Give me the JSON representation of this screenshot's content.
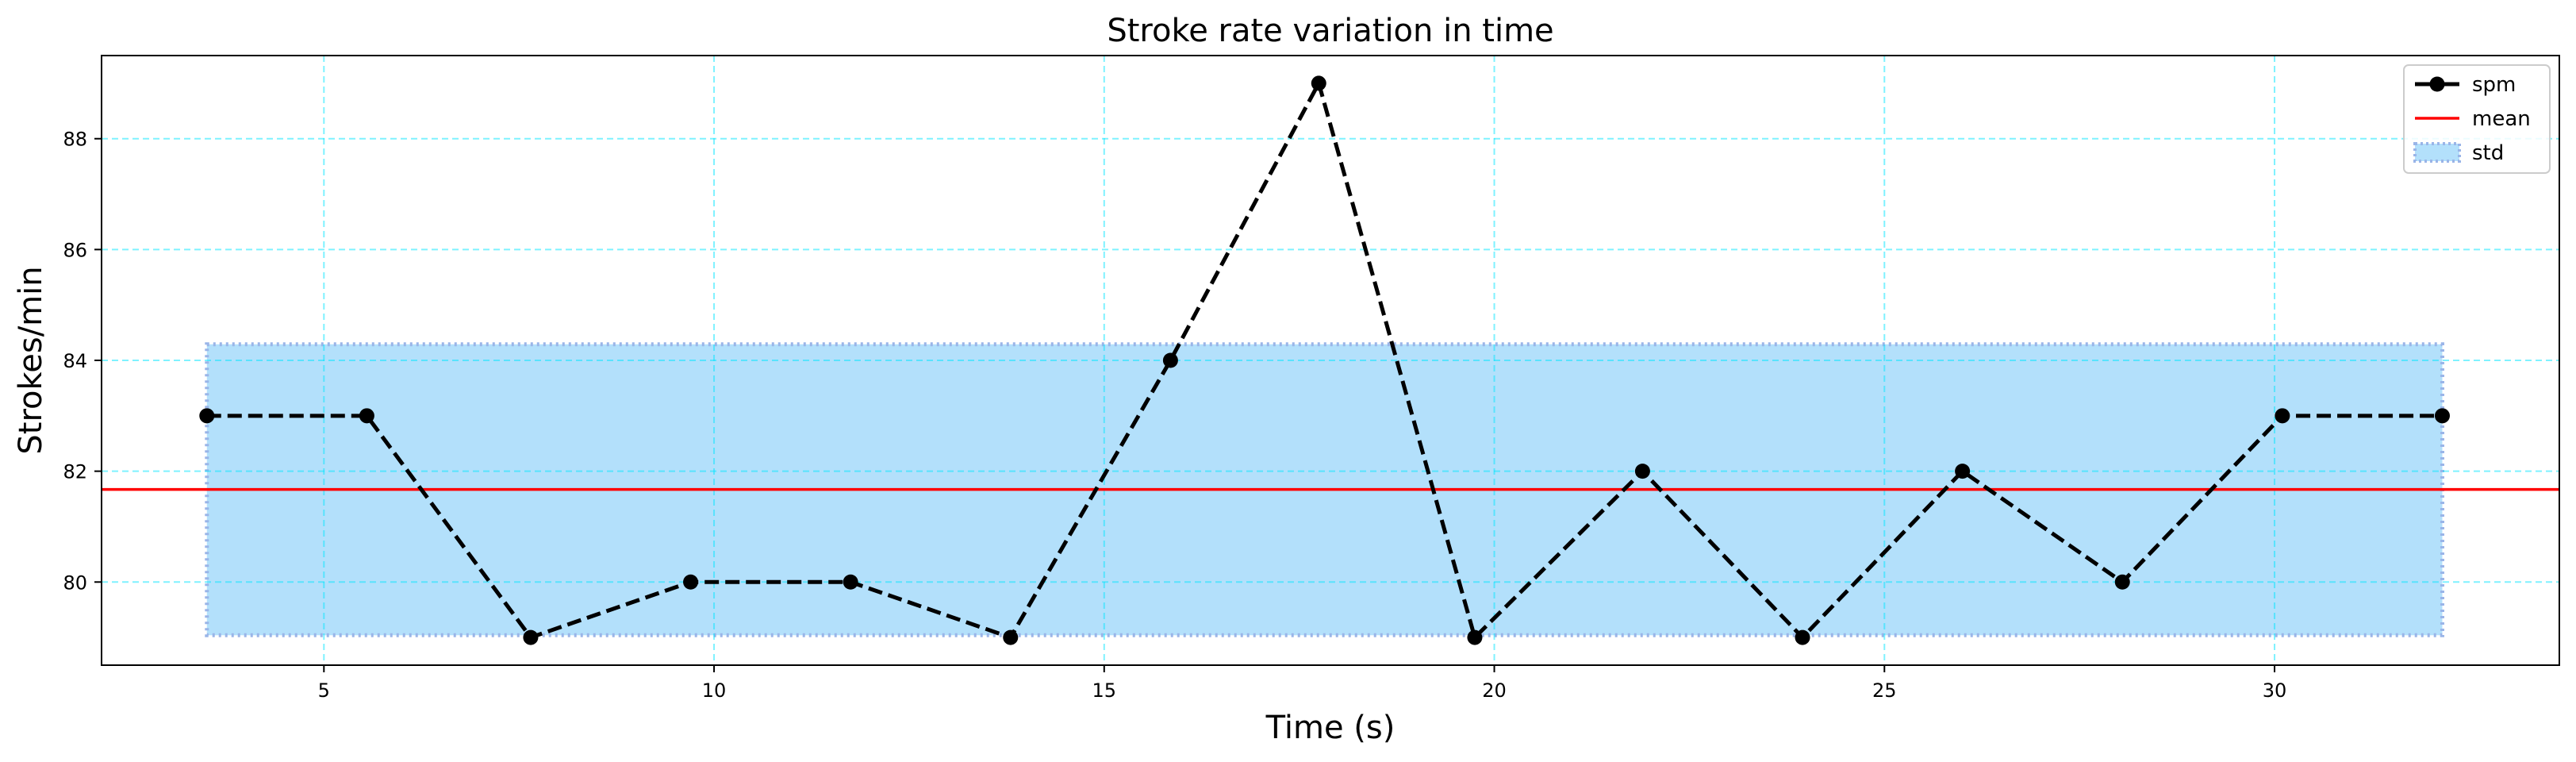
{
  "chart_data": {
    "type": "line",
    "title": "Stroke rate variation in time",
    "xlabel": "Time (s)",
    "ylabel": "Strokes/min",
    "xlim": [
      2.15,
      33.65
    ],
    "ylim": [
      78.5,
      89.5
    ],
    "xticks": [
      5,
      10,
      15,
      20,
      25,
      30
    ],
    "yticks": [
      80,
      82,
      84,
      86,
      88
    ],
    "grid": true,
    "grid_color": "#00e5ff",
    "legend_position": "top-right",
    "series": [
      {
        "name": "spm",
        "color": "#000000",
        "style": "dashed-with-markers",
        "x": [
          3.5,
          5.55,
          7.65,
          9.7,
          11.75,
          13.8,
          15.85,
          17.75,
          19.75,
          21.9,
          23.95,
          26.0,
          28.05,
          30.1,
          32.15
        ],
        "y": [
          83,
          83,
          79,
          80,
          80,
          79,
          84,
          89,
          79,
          82,
          79,
          82,
          80,
          83,
          83
        ]
      },
      {
        "name": "mean",
        "color": "#ff0000",
        "style": "solid",
        "y": 81.67
      },
      {
        "name": "std",
        "color": "#b3e0fb",
        "edge_color": "#9ab5e8",
        "style": "band",
        "x_range": [
          3.5,
          32.15
        ],
        "y_range": [
          79.04,
          84.29
        ]
      }
    ]
  }
}
